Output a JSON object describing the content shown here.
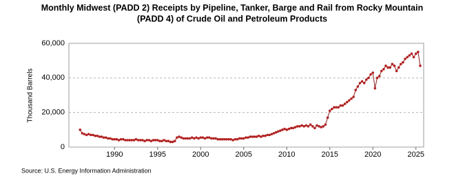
{
  "chart_data": {
    "type": "line",
    "title": [
      "Monthly Midwest (PADD 2) Receipts by Pipeline, Tanker, Barge and Rail from Rocky Mountain",
      "(PADD 4) of Crude Oil and Petroleum Products"
    ],
    "ylabel": "Thousand Barrels",
    "source": "Source: U.S. Energy Information Administration",
    "xlim": [
      1984.7,
      2025.9
    ],
    "xticks": [
      1990,
      1995,
      2000,
      2005,
      2010,
      2015,
      2020,
      2025
    ],
    "ylim": [
      0,
      60000
    ],
    "yticks": [
      0,
      {
        "value": 20000,
        "label": "20,000"
      },
      {
        "value": 40000,
        "label": "40,000"
      },
      {
        "value": 60000,
        "label": "60,000"
      }
    ],
    "grid": true,
    "x": [
      1986,
      1986.25,
      1986.5,
      1986.75,
      1987,
      1987.25,
      1987.5,
      1987.75,
      1988,
      1988.25,
      1988.5,
      1988.75,
      1989,
      1989.25,
      1989.5,
      1989.75,
      1990,
      1990.25,
      1990.5,
      1990.75,
      1991,
      1991.25,
      1991.5,
      1991.75,
      1992,
      1992.25,
      1992.5,
      1992.75,
      1993,
      1993.25,
      1993.5,
      1993.75,
      1994,
      1994.25,
      1994.5,
      1994.75,
      1995,
      1995.25,
      1995.5,
      1995.75,
      1996,
      1996.25,
      1996.5,
      1996.75,
      1997,
      1997.25,
      1997.5,
      1997.75,
      1998,
      1998.25,
      1998.5,
      1998.75,
      1999,
      1999.25,
      1999.5,
      1999.75,
      2000,
      2000.25,
      2000.5,
      2000.75,
      2001,
      2001.25,
      2001.5,
      2001.75,
      2002,
      2002.25,
      2002.5,
      2002.75,
      2003,
      2003.25,
      2003.5,
      2003.75,
      2004,
      2004.25,
      2004.5,
      2004.75,
      2005,
      2005.25,
      2005.5,
      2005.75,
      2006,
      2006.25,
      2006.5,
      2006.75,
      2007,
      2007.25,
      2007.5,
      2007.75,
      2008,
      2008.25,
      2008.5,
      2008.75,
      2009,
      2009.25,
      2009.5,
      2009.75,
      2010,
      2010.25,
      2010.5,
      2010.75,
      2011,
      2011.25,
      2011.5,
      2011.75,
      2012,
      2012.25,
      2012.5,
      2012.75,
      2013,
      2013.25,
      2013.5,
      2013.75,
      2014,
      2014.25,
      2014.5,
      2014.75,
      2015,
      2015.25,
      2015.5,
      2015.75,
      2016,
      2016.25,
      2016.5,
      2016.75,
      2017,
      2017.25,
      2017.5,
      2017.75,
      2018,
      2018.25,
      2018.5,
      2018.75,
      2019,
      2019.25,
      2019.5,
      2019.75,
      2020,
      2020.25,
      2020.5,
      2020.75,
      2021,
      2021.25,
      2021.5,
      2021.75,
      2022,
      2022.25,
      2022.5,
      2022.75,
      2023,
      2023.25,
      2023.5,
      2023.75,
      2024,
      2024.25,
      2024.5,
      2024.75,
      2025,
      2025.25,
      2025.5
    ],
    "series": [
      {
        "name": "Receipts",
        "color": "#b22222",
        "line_color": "#8b1a1a",
        "values": [
          10000,
          8000,
          7500,
          7000,
          7500,
          7000,
          7000,
          6500,
          6500,
          6000,
          6000,
          5500,
          5500,
          5000,
          5000,
          4500,
          4500,
          4500,
          4000,
          4500,
          4500,
          4000,
          4000,
          4000,
          4000,
          4000,
          4500,
          4000,
          4000,
          4000,
          3500,
          4000,
          4000,
          3500,
          4000,
          4000,
          4000,
          3500,
          3500,
          4000,
          3500,
          3500,
          3000,
          3000,
          3500,
          5500,
          6000,
          5500,
          5000,
          5000,
          5000,
          5000,
          5500,
          5000,
          5500,
          5000,
          5500,
          5500,
          5000,
          5500,
          5500,
          5000,
          5000,
          5000,
          4500,
          4500,
          4500,
          4500,
          4500,
          4500,
          4500,
          4000,
          4500,
          4500,
          5000,
          5000,
          5000,
          5500,
          5500,
          6000,
          6000,
          6000,
          6000,
          6500,
          6000,
          6500,
          6500,
          7000,
          7000,
          7500,
          8000,
          8500,
          9000,
          9500,
          10000,
          10500,
          10000,
          10500,
          11000,
          11000,
          11500,
          12000,
          12000,
          12500,
          12000,
          12500,
          12000,
          13000,
          12000,
          11000,
          12500,
          12000,
          11500,
          12000,
          13000,
          17000,
          21000,
          22000,
          23000,
          23000,
          23000,
          24000,
          24000,
          25000,
          26000,
          27000,
          28000,
          29000,
          33000,
          35000,
          37000,
          38000,
          37000,
          39000,
          40000,
          42000,
          43000,
          34000,
          40000,
          41000,
          44000,
          45000,
          47000,
          46000,
          46000,
          48000,
          47000,
          44000,
          46000,
          48000,
          49000,
          51000,
          52000,
          53000,
          54000,
          52000,
          54000,
          55000,
          47000
        ]
      }
    ]
  }
}
